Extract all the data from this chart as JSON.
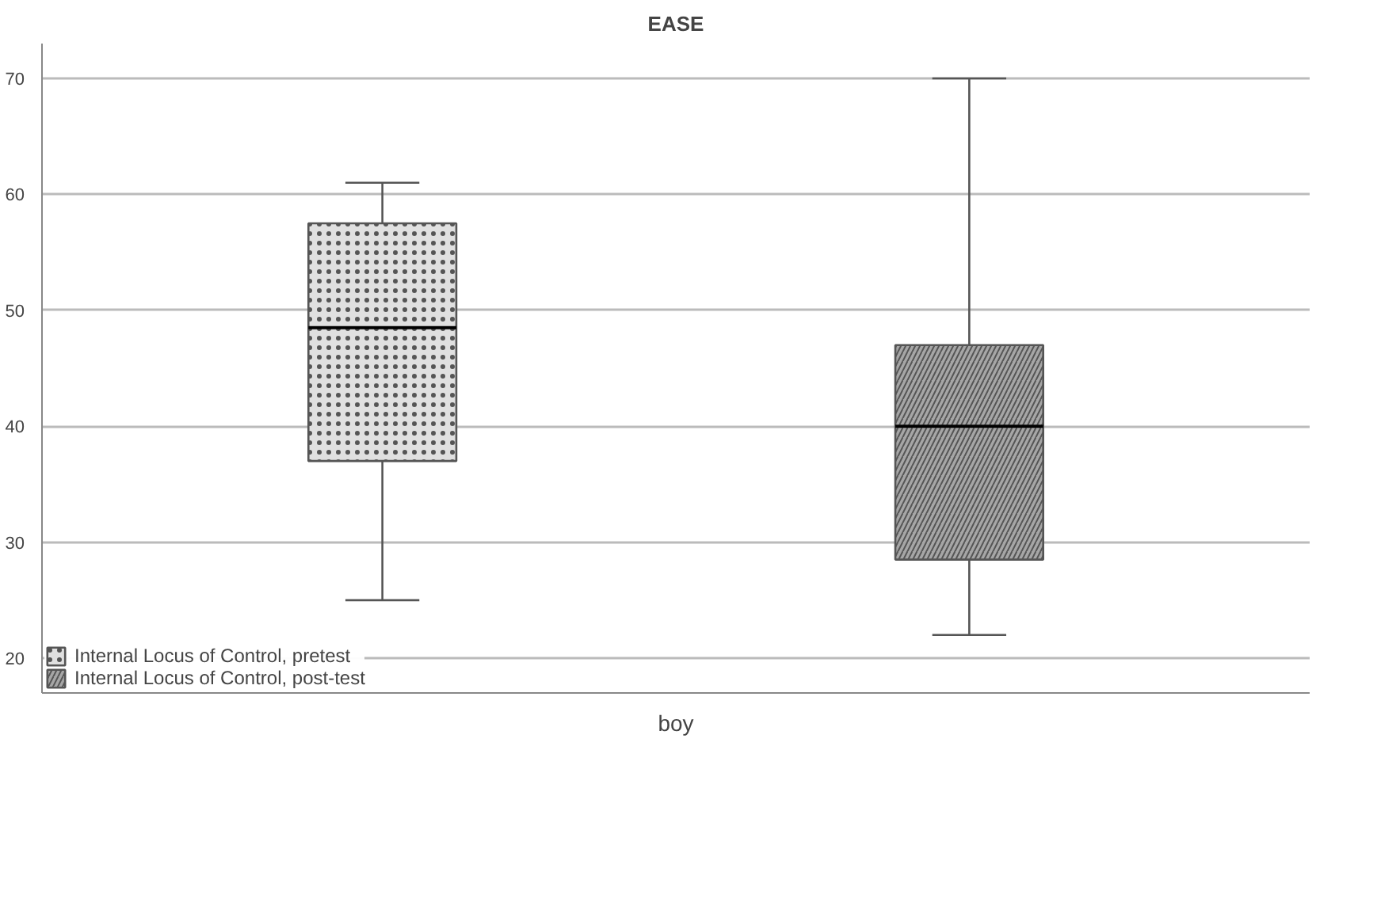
{
  "chart_data": {
    "type": "box",
    "title": "EASE",
    "categories": [
      "boy"
    ],
    "series": [
      {
        "name": "Internal Locus of Control, pretest",
        "color": "#e0e0e0",
        "boxes": [
          {
            "low": 25,
            "q1": 37,
            "median": 48.5,
            "q3": 57.5,
            "high": 61
          }
        ]
      },
      {
        "name": "Internal Locus of Control, post-test",
        "color": "#a6a6a6",
        "boxes": [
          {
            "low": 22,
            "q1": 28.5,
            "median": 40,
            "q3": 47,
            "high": 70
          }
        ]
      }
    ],
    "ylim": [
      17,
      73
    ],
    "yticks": [
      20,
      30,
      40,
      50,
      60,
      70
    ],
    "grid": "y",
    "legend": "bottom left"
  }
}
